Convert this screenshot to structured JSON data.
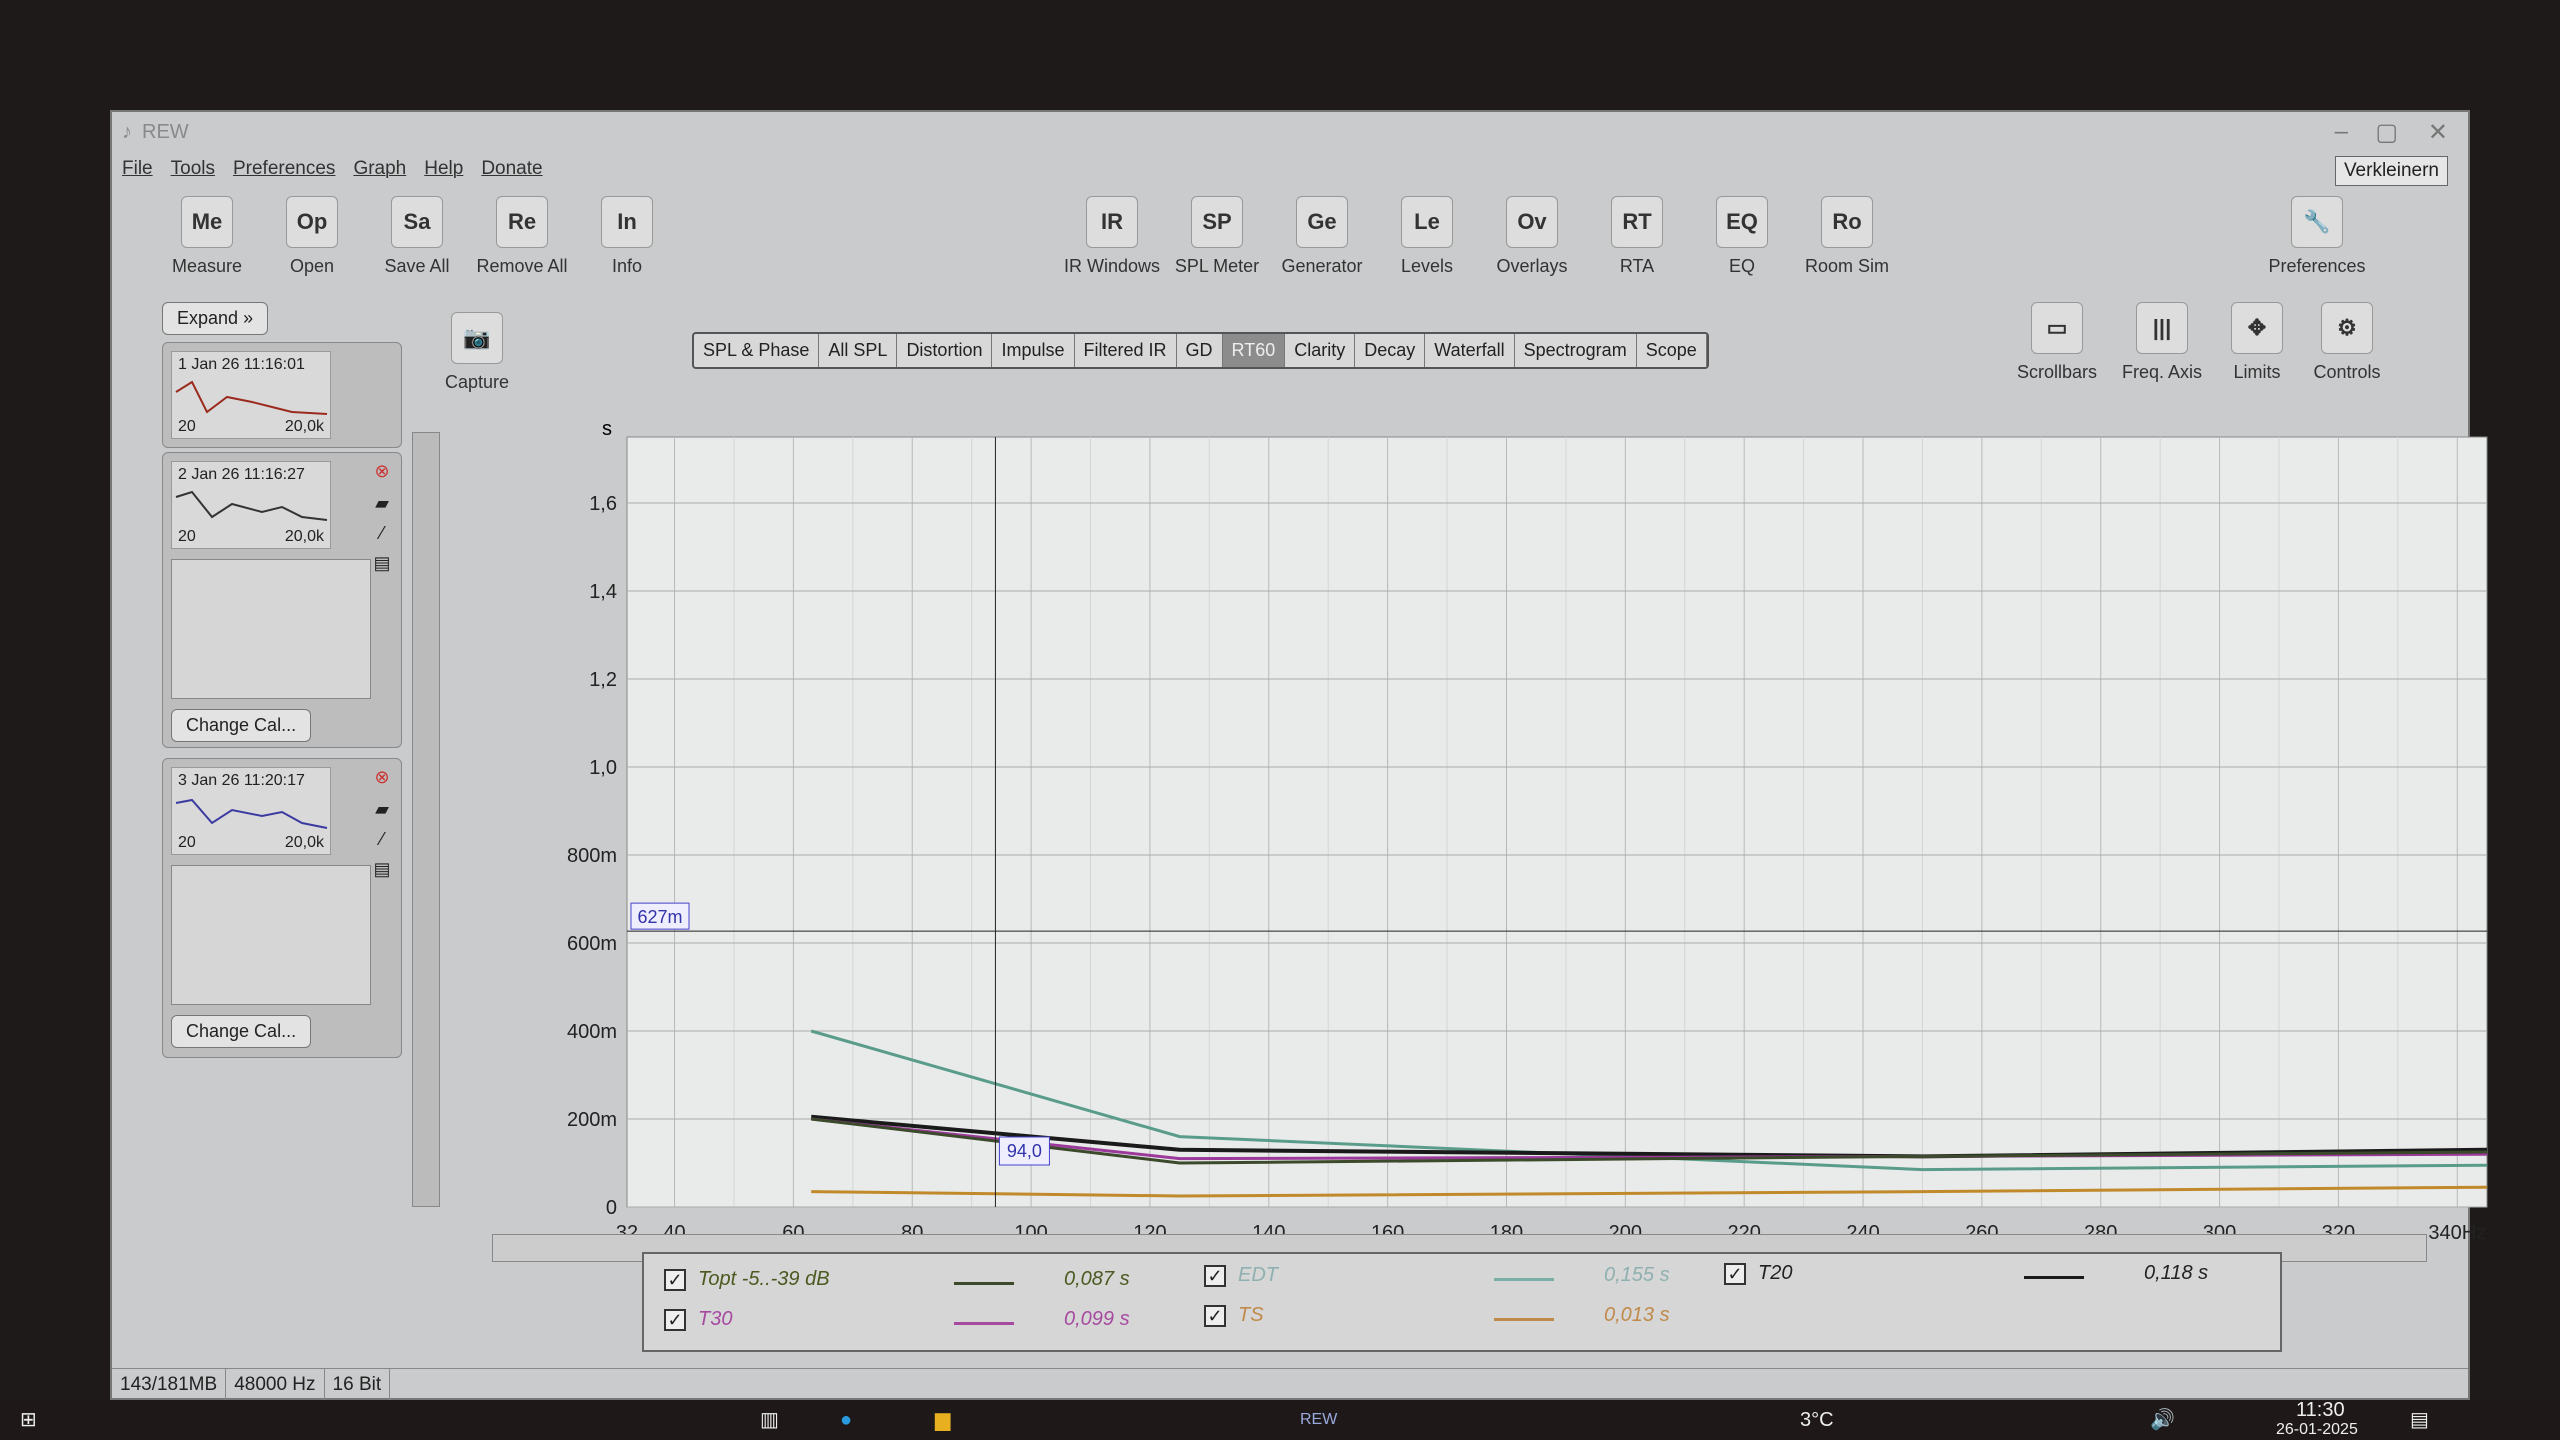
{
  "window": {
    "title": "REW",
    "tooltip": "Verkleinern"
  },
  "menu": [
    "File",
    "Tools",
    "Preferences",
    "Graph",
    "Help",
    "Donate"
  ],
  "toolbar_left": [
    {
      "label": "Measure",
      "icon": "measure-icon"
    },
    {
      "label": "Open",
      "icon": "open-icon"
    },
    {
      "label": "Save All",
      "icon": "save-icon"
    },
    {
      "label": "Remove All",
      "icon": "remove-all-icon"
    },
    {
      "label": "Info",
      "icon": "info-icon"
    }
  ],
  "toolbar_right": [
    {
      "label": "IR Windows",
      "icon": "ir-windows-icon"
    },
    {
      "label": "SPL Meter",
      "icon": "spl-meter-icon"
    },
    {
      "label": "Generator",
      "icon": "generator-icon"
    },
    {
      "label": "Levels",
      "icon": "levels-icon"
    },
    {
      "label": "Overlays",
      "icon": "overlays-icon"
    },
    {
      "label": "RTA",
      "icon": "rta-icon"
    },
    {
      "label": "EQ",
      "icon": "eq-icon"
    },
    {
      "label": "Room Sim",
      "icon": "room-sim-icon"
    }
  ],
  "preferences": "Preferences",
  "capture": "Capture",
  "graph_tools": [
    "Scrollbars",
    "Freq. Axis",
    "Limits",
    "Controls"
  ],
  "tabs": [
    "SPL & Phase",
    "All SPL",
    "Distortion",
    "Impulse",
    "Filtered IR",
    "GD",
    "RT60",
    "Clarity",
    "Decay",
    "Waterfall",
    "Spectrogram",
    "Scope"
  ],
  "active_tab": "RT60",
  "sidebar": {
    "expand": "Expand",
    "change_cal": "Change Cal...",
    "measurements": [
      {
        "name": "1 Jan 26 11:16:01",
        "min": "20",
        "max": "20,0k",
        "color": "#9b2a1e"
      },
      {
        "name": "2 Jan 26 11:16:27",
        "min": "20",
        "max": "20,0k",
        "color": "#333333"
      },
      {
        "name": "3 Jan 26 11:20:17",
        "min": "20",
        "max": "20,0k",
        "color": "#3a3aa0"
      }
    ]
  },
  "cursor": {
    "x_label": "94,0",
    "y_label": "627m",
    "x": 94,
    "y": 0.627
  },
  "chart_data": {
    "type": "line",
    "ylabel": "s",
    "xunit": "Hz",
    "xlim": [
      32,
      345
    ],
    "ylim": [
      0,
      1.75
    ],
    "xticks": [
      "32",
      "40",
      "60",
      "80",
      "100",
      "120",
      "140",
      "160",
      "180",
      "200",
      "220",
      "240",
      "260",
      "280",
      "300",
      "320",
      "340Hz"
    ],
    "xtick_values": [
      32,
      40,
      60,
      80,
      100,
      120,
      140,
      160,
      180,
      200,
      220,
      240,
      260,
      280,
      300,
      320,
      340
    ],
    "yticks": [
      "0",
      "200m",
      "400m",
      "600m",
      "800m",
      "1,0",
      "1,2",
      "1,4",
      "1,6"
    ],
    "ytick_values": [
      0,
      0.2,
      0.4,
      0.6,
      0.8,
      1.0,
      1.2,
      1.4,
      1.6
    ],
    "grid": true,
    "x": [
      63,
      125,
      250,
      345
    ],
    "series": [
      {
        "name": "EDT",
        "color": "#5a9c8a",
        "values": [
          0.4,
          0.16,
          0.085,
          0.095
        ]
      },
      {
        "name": "T20",
        "color": "#1a1a1a",
        "values": [
          0.205,
          0.13,
          0.115,
          0.13
        ]
      },
      {
        "name": "T30",
        "color": "#9b3a9a",
        "values": [
          0.2,
          0.11,
          0.115,
          0.12
        ]
      },
      {
        "name": "Topt -5..-39 dB",
        "color": "#3b4a2a",
        "values": [
          0.2,
          0.1,
          0.115,
          0.125
        ]
      },
      {
        "name": "TS",
        "color": "#c08a2a",
        "values": [
          0.035,
          0.025,
          0.035,
          0.045
        ]
      }
    ]
  },
  "legend": [
    {
      "label": "Topt -5..-39 dB",
      "value": "0,087 s",
      "color": "#3b4a2a",
      "text_color": "#4a5a20"
    },
    {
      "label": "EDT",
      "value": "0,155 s",
      "color": "#7ab0a8",
      "text_color": "#8fb0b0"
    },
    {
      "label": "T20",
      "value": "0,118 s",
      "color": "#1a1a1a",
      "text_color": "#222222"
    },
    {
      "label": "T30",
      "value": "0,099 s",
      "color": "#a64aa0",
      "text_color": "#a64aa0"
    },
    {
      "label": "TS",
      "value": "0,013 s",
      "color": "#c08a4a",
      "text_color": "#c08a4a"
    }
  ],
  "status": [
    "143/181MB",
    "48000 Hz",
    "16 Bit"
  ],
  "taskbar": {
    "rew": "REW",
    "weather": "3°C",
    "time": "11:30",
    "date": "26-01-2025"
  }
}
